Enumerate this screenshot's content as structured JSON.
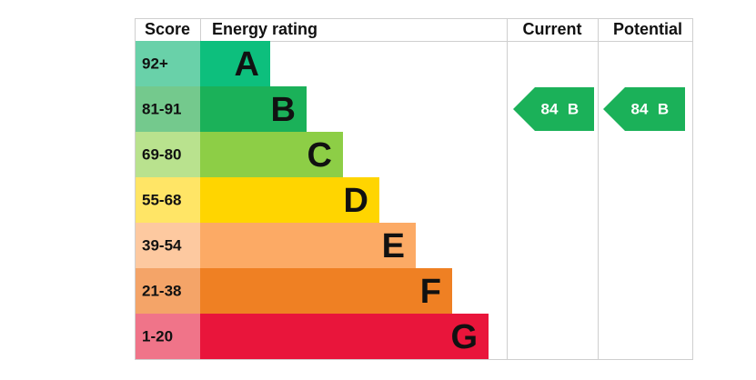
{
  "headers": {
    "score": "Score",
    "rating": "Energy rating",
    "current": "Current",
    "potential": "Potential"
  },
  "bands": [
    {
      "score": "92+",
      "letter": "A",
      "color": "#0dbf7d",
      "light_color": "#69d1a9"
    },
    {
      "score": "81-91",
      "letter": "B",
      "color": "#1bb159",
      "light_color": "#74c98d"
    },
    {
      "score": "69-80",
      "letter": "C",
      "color": "#8dce46",
      "light_color": "#b9e28e"
    },
    {
      "score": "55-68",
      "letter": "D",
      "color": "#ffd500",
      "light_color": "#ffe566"
    },
    {
      "score": "39-54",
      "letter": "E",
      "color": "#fcaa65",
      "light_color": "#fdc9a0"
    },
    {
      "score": "21-38",
      "letter": "F",
      "color": "#ef8023",
      "light_color": "#f4a468"
    },
    {
      "score": "1-20",
      "letter": "G",
      "color": "#e9153b",
      "light_color": "#f07489"
    }
  ],
  "current": {
    "score": 84,
    "band": "B",
    "color": "#1bb159"
  },
  "potential": {
    "score": 84,
    "band": "B",
    "color": "#1bb159"
  }
}
